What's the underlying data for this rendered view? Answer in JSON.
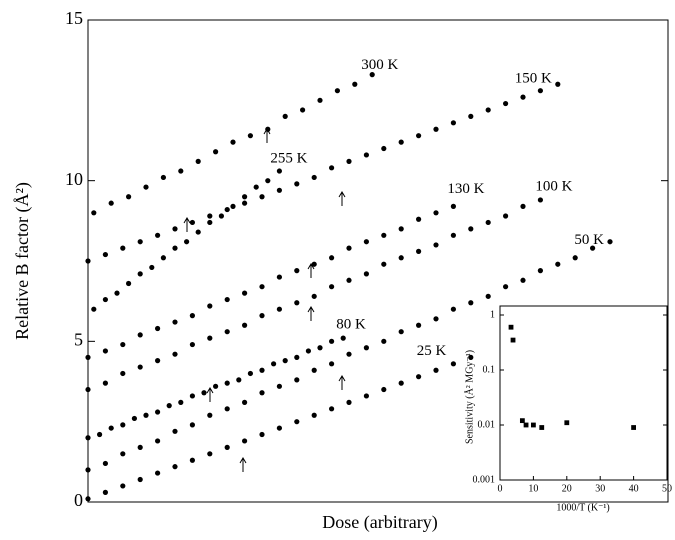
{
  "chart_data": [
    {
      "type": "scatter",
      "x_label": "Dose (arbitrary)",
      "y_label": "Relative B factor (Å²)",
      "xlim": [
        0,
        100
      ],
      "ylim": [
        0,
        15
      ],
      "yticks": [
        0,
        5,
        10,
        15
      ],
      "series": [
        {
          "name": "300 K",
          "color": "#000000",
          "x": [
            1,
            4,
            7,
            10,
            13,
            16,
            19,
            22,
            25,
            28,
            31,
            34,
            37,
            40,
            43,
            46,
            49
          ],
          "values": [
            9.0,
            9.3,
            9.5,
            9.8,
            10.1,
            10.3,
            10.6,
            10.9,
            11.2,
            11.4,
            11.6,
            12.0,
            12.2,
            12.5,
            12.8,
            13.0,
            13.3
          ]
        },
        {
          "name": "150 K",
          "color": "#000000",
          "x": [
            0,
            3,
            6,
            9,
            12,
            15,
            18,
            21,
            24,
            27,
            30,
            33,
            36,
            39,
            42,
            45,
            48,
            51,
            54,
            57,
            60,
            63,
            66,
            69,
            72,
            75,
            78,
            81
          ],
          "values": [
            7.5,
            7.7,
            7.9,
            8.1,
            8.3,
            8.5,
            8.7,
            8.9,
            9.1,
            9.3,
            9.5,
            9.7,
            9.9,
            10.1,
            10.4,
            10.6,
            10.8,
            11.0,
            11.2,
            11.4,
            11.6,
            11.8,
            12.0,
            12.2,
            12.4,
            12.6,
            12.8,
            13.0
          ]
        },
        {
          "name": "255 K",
          "color": "#000000",
          "x": [
            1,
            3,
            5,
            7,
            9,
            11,
            13,
            15,
            17,
            19,
            21,
            23,
            25,
            27,
            29,
            31,
            33
          ],
          "values": [
            6.0,
            6.3,
            6.5,
            6.8,
            7.1,
            7.3,
            7.6,
            7.9,
            8.1,
            8.4,
            8.7,
            8.9,
            9.2,
            9.5,
            9.8,
            10.0,
            10.3
          ]
        },
        {
          "name": "130 K",
          "color": "#000000",
          "x": [
            0,
            3,
            6,
            9,
            12,
            15,
            18,
            21,
            24,
            27,
            30,
            33,
            36,
            39,
            42,
            45,
            48,
            51,
            54,
            57,
            60,
            63
          ],
          "values": [
            4.5,
            4.7,
            4.9,
            5.2,
            5.4,
            5.6,
            5.8,
            6.1,
            6.3,
            6.5,
            6.7,
            7.0,
            7.2,
            7.4,
            7.6,
            7.9,
            8.1,
            8.3,
            8.5,
            8.8,
            9.0,
            9.2
          ]
        },
        {
          "name": "100 K",
          "color": "#000000",
          "x": [
            0,
            3,
            6,
            9,
            12,
            15,
            18,
            21,
            24,
            27,
            30,
            33,
            36,
            39,
            42,
            45,
            48,
            51,
            54,
            57,
            60,
            63,
            66,
            69,
            72,
            75,
            78
          ],
          "values": [
            3.5,
            3.7,
            4.0,
            4.2,
            4.4,
            4.6,
            4.9,
            5.1,
            5.3,
            5.5,
            5.8,
            6.0,
            6.2,
            6.4,
            6.7,
            6.9,
            7.1,
            7.4,
            7.6,
            7.8,
            8.0,
            8.3,
            8.5,
            8.7,
            8.9,
            9.2,
            9.4
          ]
        },
        {
          "name": "80 K",
          "color": "#000000",
          "x": [
            0,
            2,
            4,
            6,
            8,
            10,
            12,
            14,
            16,
            18,
            20,
            22,
            24,
            26,
            28,
            30,
            32,
            34,
            36,
            38,
            40,
            42,
            44
          ],
          "values": [
            2.0,
            2.1,
            2.3,
            2.4,
            2.6,
            2.7,
            2.8,
            3.0,
            3.1,
            3.3,
            3.4,
            3.6,
            3.7,
            3.8,
            4.0,
            4.1,
            4.3,
            4.4,
            4.5,
            4.7,
            4.8,
            5.0,
            5.1
          ]
        },
        {
          "name": "50 K",
          "color": "#000000",
          "x": [
            0,
            3,
            6,
            9,
            12,
            15,
            18,
            21,
            24,
            27,
            30,
            33,
            36,
            39,
            42,
            45,
            48,
            51,
            54,
            57,
            60,
            63,
            66,
            69,
            72,
            75,
            78,
            81,
            84,
            87,
            90
          ],
          "values": [
            1.0,
            1.2,
            1.5,
            1.7,
            1.9,
            2.2,
            2.4,
            2.7,
            2.9,
            3.1,
            3.4,
            3.6,
            3.8,
            4.1,
            4.3,
            4.6,
            4.8,
            5.0,
            5.3,
            5.5,
            5.7,
            6.0,
            6.2,
            6.4,
            6.7,
            6.9,
            7.2,
            7.4,
            7.6,
            7.9,
            8.1
          ]
        },
        {
          "name": "25 K",
          "color": "#000000",
          "x": [
            0,
            3,
            6,
            9,
            12,
            15,
            18,
            21,
            24,
            27,
            30,
            33,
            36,
            39,
            42,
            45,
            48,
            51,
            54,
            57,
            60,
            63,
            66
          ],
          "values": [
            0.1,
            0.3,
            0.5,
            0.7,
            0.9,
            1.1,
            1.3,
            1.5,
            1.7,
            1.9,
            2.1,
            2.3,
            2.5,
            2.7,
            2.9,
            3.1,
            3.3,
            3.5,
            3.7,
            3.9,
            4.1,
            4.3,
            4.5
          ]
        }
      ]
    },
    {
      "type": "scatter",
      "x_label": "1000/T (K⁻¹)",
      "y_label": "Sensitivity (Å² MGy⁻¹)",
      "xlim": [
        0,
        50
      ],
      "xticks": [
        0,
        10,
        20,
        30,
        40,
        50
      ],
      "ylim": [
        0.001,
        1
      ],
      "yticks": [
        0.001,
        0.01,
        0.1,
        1
      ],
      "log_y": true,
      "series": [
        {
          "color": "#000000",
          "x": [
            3.3,
            3.9,
            6.7,
            7.8,
            10,
            12.5,
            20,
            40
          ],
          "values": [
            0.6,
            0.35,
            0.012,
            0.01,
            0.01,
            0.009,
            0.011,
            0.009
          ]
        }
      ]
    }
  ]
}
